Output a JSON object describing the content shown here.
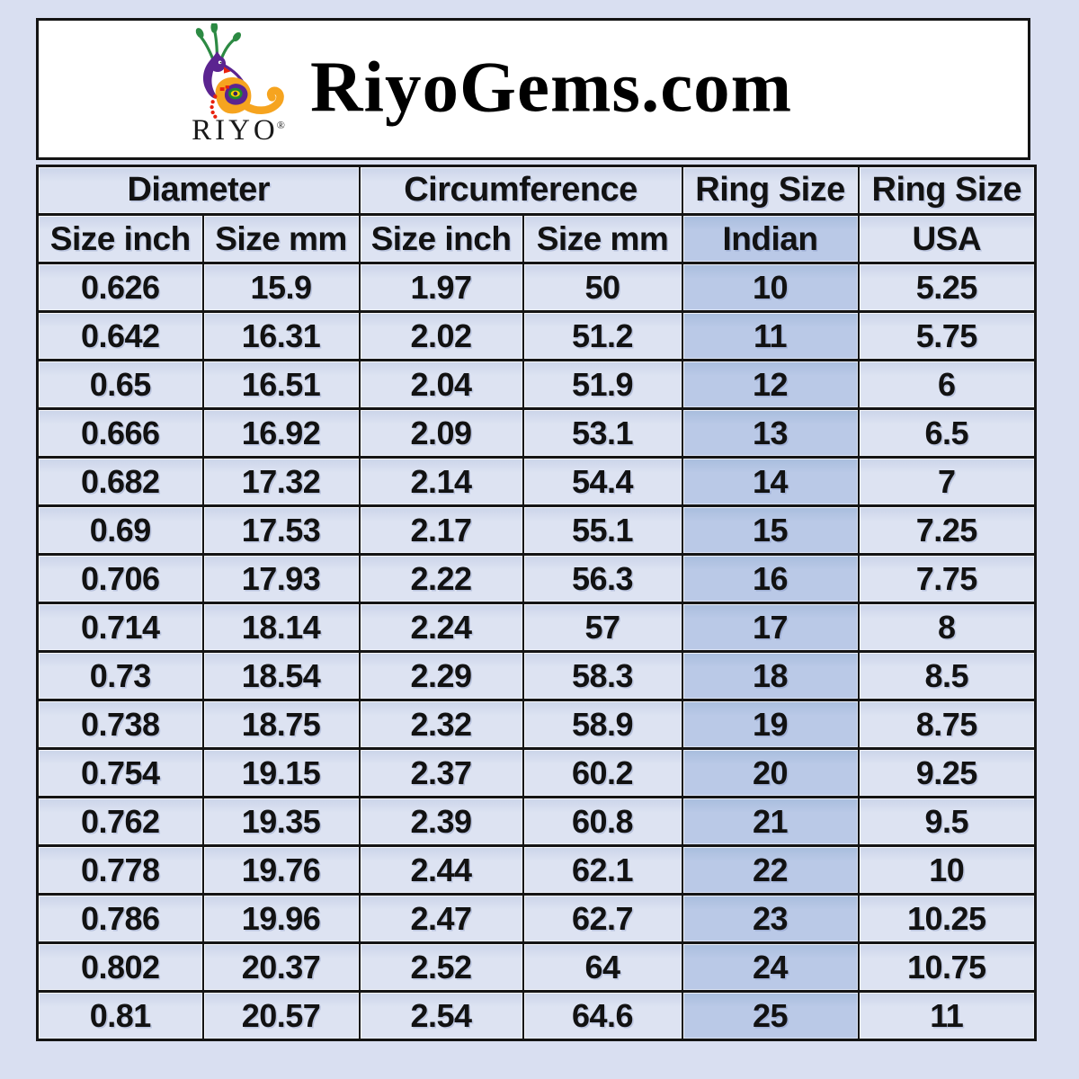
{
  "header": {
    "title": "RiyoGems.com",
    "logo_brand": "RIYO",
    "logo_registered": "®",
    "logo_icon": "peacock-icon"
  },
  "chart_data": {
    "type": "table",
    "title": "RiyoGems.com ring size conversion chart",
    "column_groups": [
      {
        "label": "Diameter",
        "span": 2
      },
      {
        "label": "Circumference",
        "span": 2
      },
      {
        "label": "Ring Size",
        "span": 1
      },
      {
        "label": "Ring Size",
        "span": 1
      }
    ],
    "columns": [
      "Size inch",
      "Size mm",
      "Size inch",
      "Size mm",
      "Indian",
      "USA"
    ],
    "highlighted_column": "Indian",
    "rows": [
      [
        "0.626",
        "15.9",
        "1.97",
        "50",
        "10",
        "5.25"
      ],
      [
        "0.642",
        "16.31",
        "2.02",
        "51.2",
        "11",
        "5.75"
      ],
      [
        "0.65",
        "16.51",
        "2.04",
        "51.9",
        "12",
        "6"
      ],
      [
        "0.666",
        "16.92",
        "2.09",
        "53.1",
        "13",
        "6.5"
      ],
      [
        "0.682",
        "17.32",
        "2.14",
        "54.4",
        "14",
        "7"
      ],
      [
        "0.69",
        "17.53",
        "2.17",
        "55.1",
        "15",
        "7.25"
      ],
      [
        "0.706",
        "17.93",
        "2.22",
        "56.3",
        "16",
        "7.75"
      ],
      [
        "0.714",
        "18.14",
        "2.24",
        "57",
        "17",
        "8"
      ],
      [
        "0.73",
        "18.54",
        "2.29",
        "58.3",
        "18",
        "8.5"
      ],
      [
        "0.738",
        "18.75",
        "2.32",
        "58.9",
        "19",
        "8.75"
      ],
      [
        "0.754",
        "19.15",
        "2.37",
        "60.2",
        "20",
        "9.25"
      ],
      [
        "0.762",
        "19.35",
        "2.39",
        "60.8",
        "21",
        "9.5"
      ],
      [
        "0.778",
        "19.76",
        "2.44",
        "62.1",
        "22",
        "10"
      ],
      [
        "0.786",
        "19.96",
        "2.47",
        "62.7",
        "23",
        "10.25"
      ],
      [
        "0.802",
        "20.37",
        "2.52",
        "64",
        "24",
        "10.75"
      ],
      [
        "0.81",
        "20.57",
        "2.54",
        "64.6",
        "25",
        "11"
      ]
    ]
  },
  "colors": {
    "page-bg": "#d9dff1",
    "box-bg": "#ffffff",
    "border": "#141414",
    "cell-bg": "#dde3f2",
    "indian-bg": "#bac9e7",
    "text": "#121212",
    "logo-purple": "#5b2490",
    "logo-orange": "#f6a41f",
    "logo-green": "#2c8a43",
    "logo-red": "#e8210c"
  }
}
